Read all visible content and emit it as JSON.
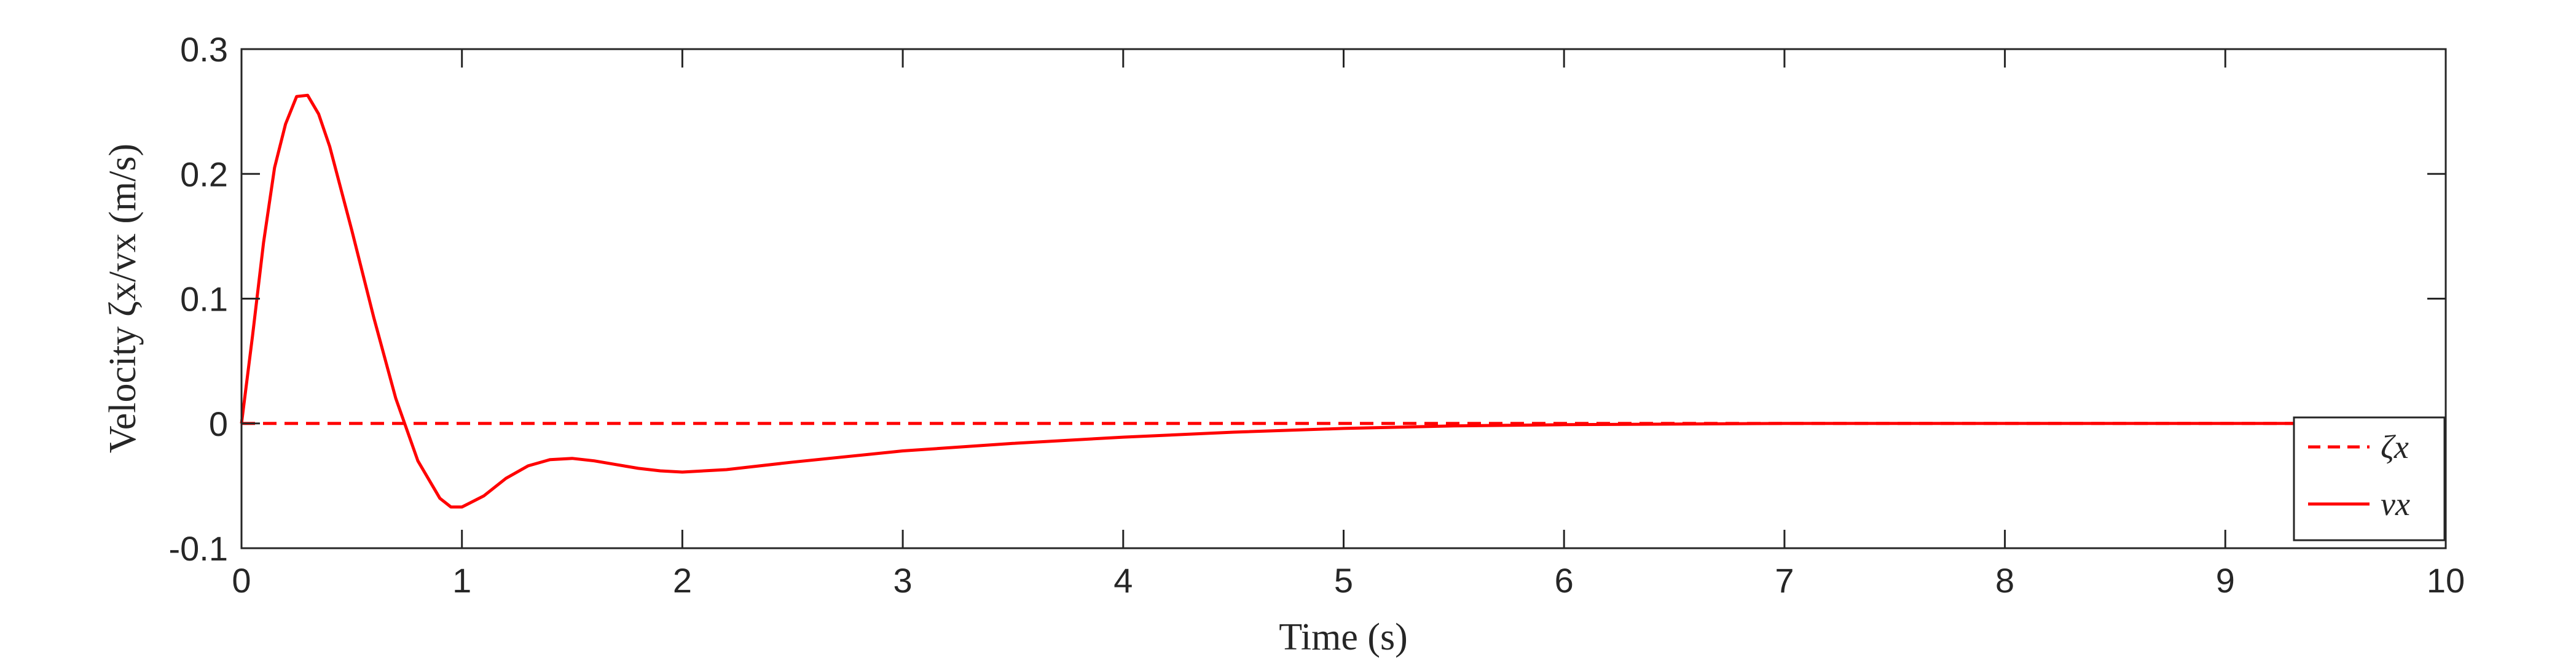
{
  "chart_data": {
    "type": "line",
    "xlabel": "Time (s)",
    "ylabel": "Velocity ζx/vx (m/s)",
    "xlim": [
      0,
      10
    ],
    "ylim": [
      -0.1,
      0.3
    ],
    "x_ticks": [
      "0",
      "1",
      "2",
      "3",
      "4",
      "5",
      "6",
      "7",
      "8",
      "9",
      "10"
    ],
    "y_ticks": [
      "0.3",
      "0.2",
      "0.1",
      "0",
      "-0.1"
    ],
    "grid": false,
    "legend_position": "bottom-right",
    "series": [
      {
        "name": "ζx",
        "style": "dashed",
        "color": "#ff0000",
        "x": [
          0,
          10
        ],
        "y": [
          0,
          0
        ]
      },
      {
        "name": "vx",
        "style": "solid",
        "color": "#ff0000",
        "x": [
          0,
          0.05,
          0.1,
          0.15,
          0.2,
          0.25,
          0.3,
          0.35,
          0.4,
          0.5,
          0.6,
          0.7,
          0.8,
          0.9,
          0.95,
          1.0,
          1.1,
          1.2,
          1.3,
          1.4,
          1.5,
          1.6,
          1.7,
          1.8,
          1.9,
          2.0,
          2.2,
          2.5,
          3.0,
          3.5,
          4.0,
          4.5,
          5.0,
          5.5,
          6.0,
          7.0,
          8.0,
          9.0,
          10.0
        ],
        "y": [
          0,
          0.07,
          0.145,
          0.205,
          0.24,
          0.262,
          0.263,
          0.248,
          0.222,
          0.155,
          0.085,
          0.02,
          -0.03,
          -0.06,
          -0.067,
          -0.067,
          -0.058,
          -0.044,
          -0.034,
          -0.029,
          -0.028,
          -0.03,
          -0.033,
          -0.036,
          -0.038,
          -0.039,
          -0.037,
          -0.031,
          -0.022,
          -0.016,
          -0.011,
          -0.007,
          -0.004,
          -0.002,
          -0.001,
          0,
          0,
          0,
          0
        ]
      }
    ]
  }
}
